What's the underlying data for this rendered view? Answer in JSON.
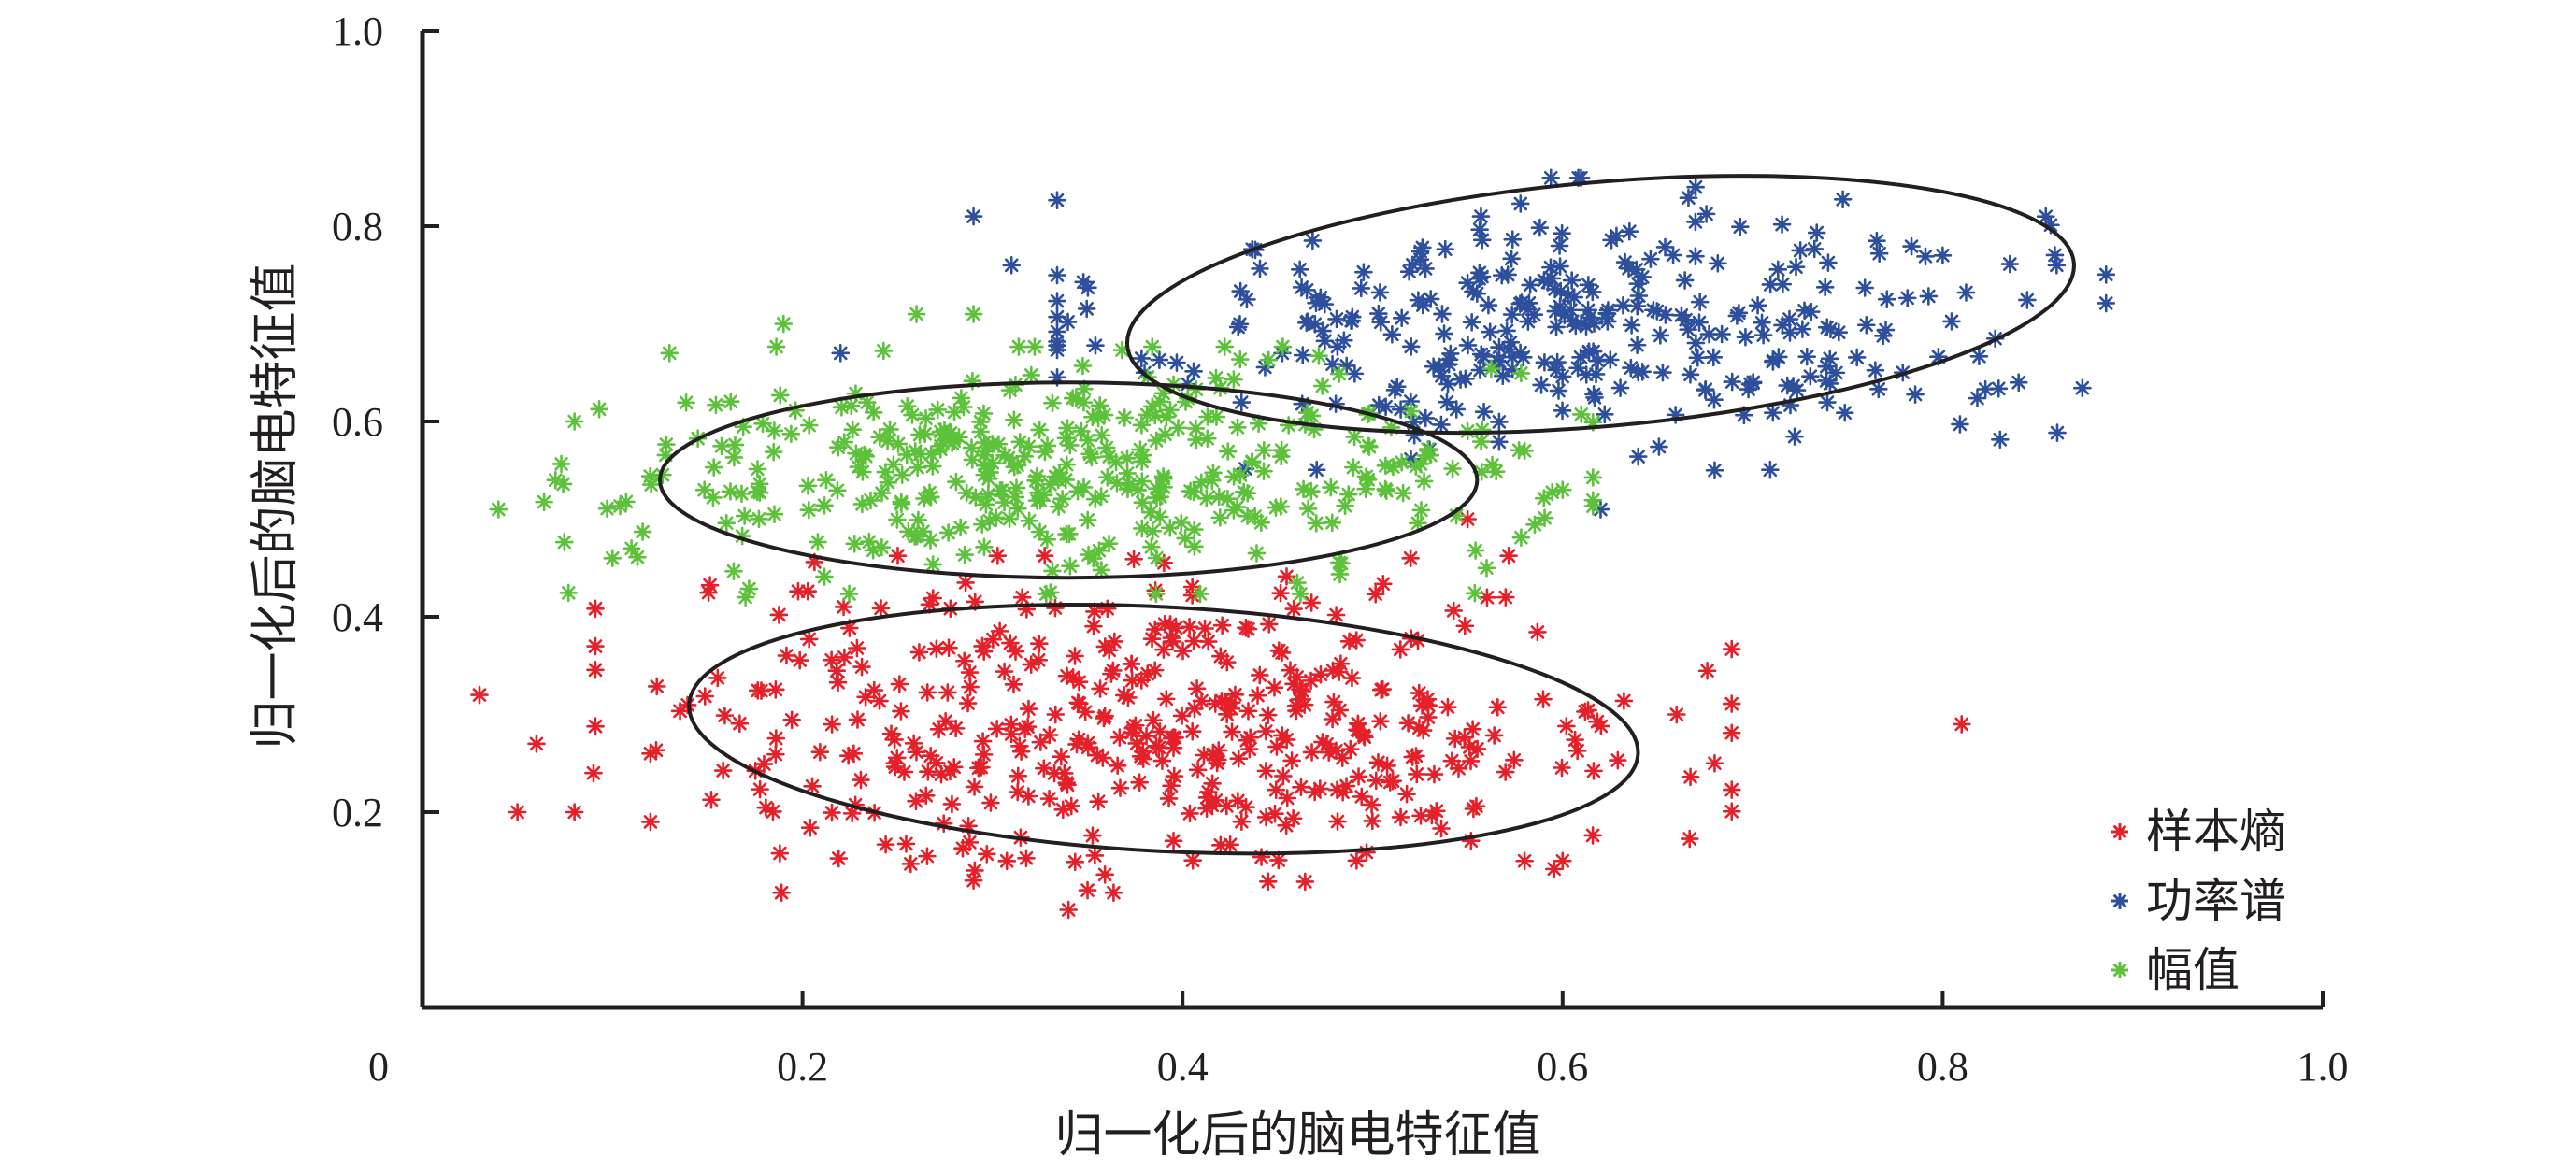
{
  "chart_data": {
    "type": "scatter",
    "title": "",
    "xlabel": "归一化后的脑电特征值",
    "ylabel": "归一化后的脑电特征值",
    "xlim": [
      0,
      1.0
    ],
    "ylim": [
      0,
      1.0
    ],
    "origin_label": "0",
    "x_ticks": [
      {
        "value": 0.2,
        "label": "0.2"
      },
      {
        "value": 0.4,
        "label": "0.4"
      },
      {
        "value": 0.6,
        "label": "0.6"
      },
      {
        "value": 0.8,
        "label": "0.8"
      },
      {
        "value": 1.0,
        "label": "1.0"
      }
    ],
    "y_ticks": [
      {
        "value": 0.2,
        "label": "0.2"
      },
      {
        "value": 0.4,
        "label": "0.4"
      },
      {
        "value": 0.6,
        "label": "0.6"
      },
      {
        "value": 0.8,
        "label": "0.8"
      },
      {
        "value": 1.0,
        "label": "1.0"
      }
    ],
    "grid": false,
    "legend_position": "bottom-right",
    "marker": "asterisk",
    "series": [
      {
        "name": "样本熵",
        "color": "#e4202a",
        "center": [
          0.39,
          0.29
        ],
        "spread": [
          0.13,
          0.075
        ],
        "count": 430,
        "extra_points": [
          [
            0.03,
            0.32
          ],
          [
            0.06,
            0.27
          ],
          [
            0.05,
            0.2
          ],
          [
            0.08,
            0.2
          ],
          [
            0.09,
            0.24
          ],
          [
            0.12,
            0.26
          ],
          [
            0.12,
            0.19
          ],
          [
            0.81,
            0.29
          ],
          [
            0.68,
            0.25
          ],
          [
            0.66,
            0.3
          ],
          [
            0.29,
            0.13
          ],
          [
            0.34,
            0.1
          ],
          [
            0.35,
            0.12
          ],
          [
            0.58,
            0.15
          ],
          [
            0.6,
            0.15
          ],
          [
            0.55,
            0.5
          ],
          [
            0.52,
            0.46
          ],
          [
            0.57,
            0.42
          ]
        ]
      },
      {
        "name": "功率谱",
        "color": "#2e4f9c",
        "center": [
          0.61,
          0.7
        ],
        "spread": [
          0.12,
          0.065
        ],
        "count": 330,
        "extra_points": [
          [
            0.29,
            0.81
          ],
          [
            0.31,
            0.76
          ],
          [
            0.86,
            0.76
          ],
          [
            0.84,
            0.64
          ],
          [
            0.8,
            0.77
          ],
          [
            0.67,
            0.84
          ],
          [
            0.68,
            0.55
          ],
          [
            0.62,
            0.51
          ],
          [
            0.22,
            0.67
          ],
          [
            0.38,
            0.65
          ]
        ]
      },
      {
        "name": "幅值",
        "color": "#5ec13c",
        "center": [
          0.34,
          0.55
        ],
        "spread": [
          0.12,
          0.055
        ],
        "count": 390,
        "extra_points": [
          [
            0.04,
            0.51
          ],
          [
            0.08,
            0.6
          ],
          [
            0.07,
            0.54
          ],
          [
            0.1,
            0.46
          ],
          [
            0.11,
            0.47
          ],
          [
            0.13,
            0.67
          ],
          [
            0.17,
            0.42
          ],
          [
            0.19,
            0.7
          ],
          [
            0.26,
            0.71
          ],
          [
            0.29,
            0.71
          ],
          [
            0.6,
            0.53
          ],
          [
            0.58,
            0.57
          ],
          [
            0.55,
            0.59
          ],
          [
            0.56,
            0.45
          ]
        ]
      }
    ],
    "ellipses": [
      {
        "series": "样本熵",
        "cx": 0.39,
        "cy": 0.285,
        "rx": 0.25,
        "ry": 0.125,
        "angle_deg": 3
      },
      {
        "series": "功率谱",
        "cx": 0.62,
        "cy": 0.72,
        "rx": 0.25,
        "ry": 0.125,
        "angle_deg": -5
      },
      {
        "series": "幅值",
        "cx": 0.34,
        "cy": 0.54,
        "rx": 0.215,
        "ry": 0.1,
        "angle_deg": 0
      }
    ]
  }
}
